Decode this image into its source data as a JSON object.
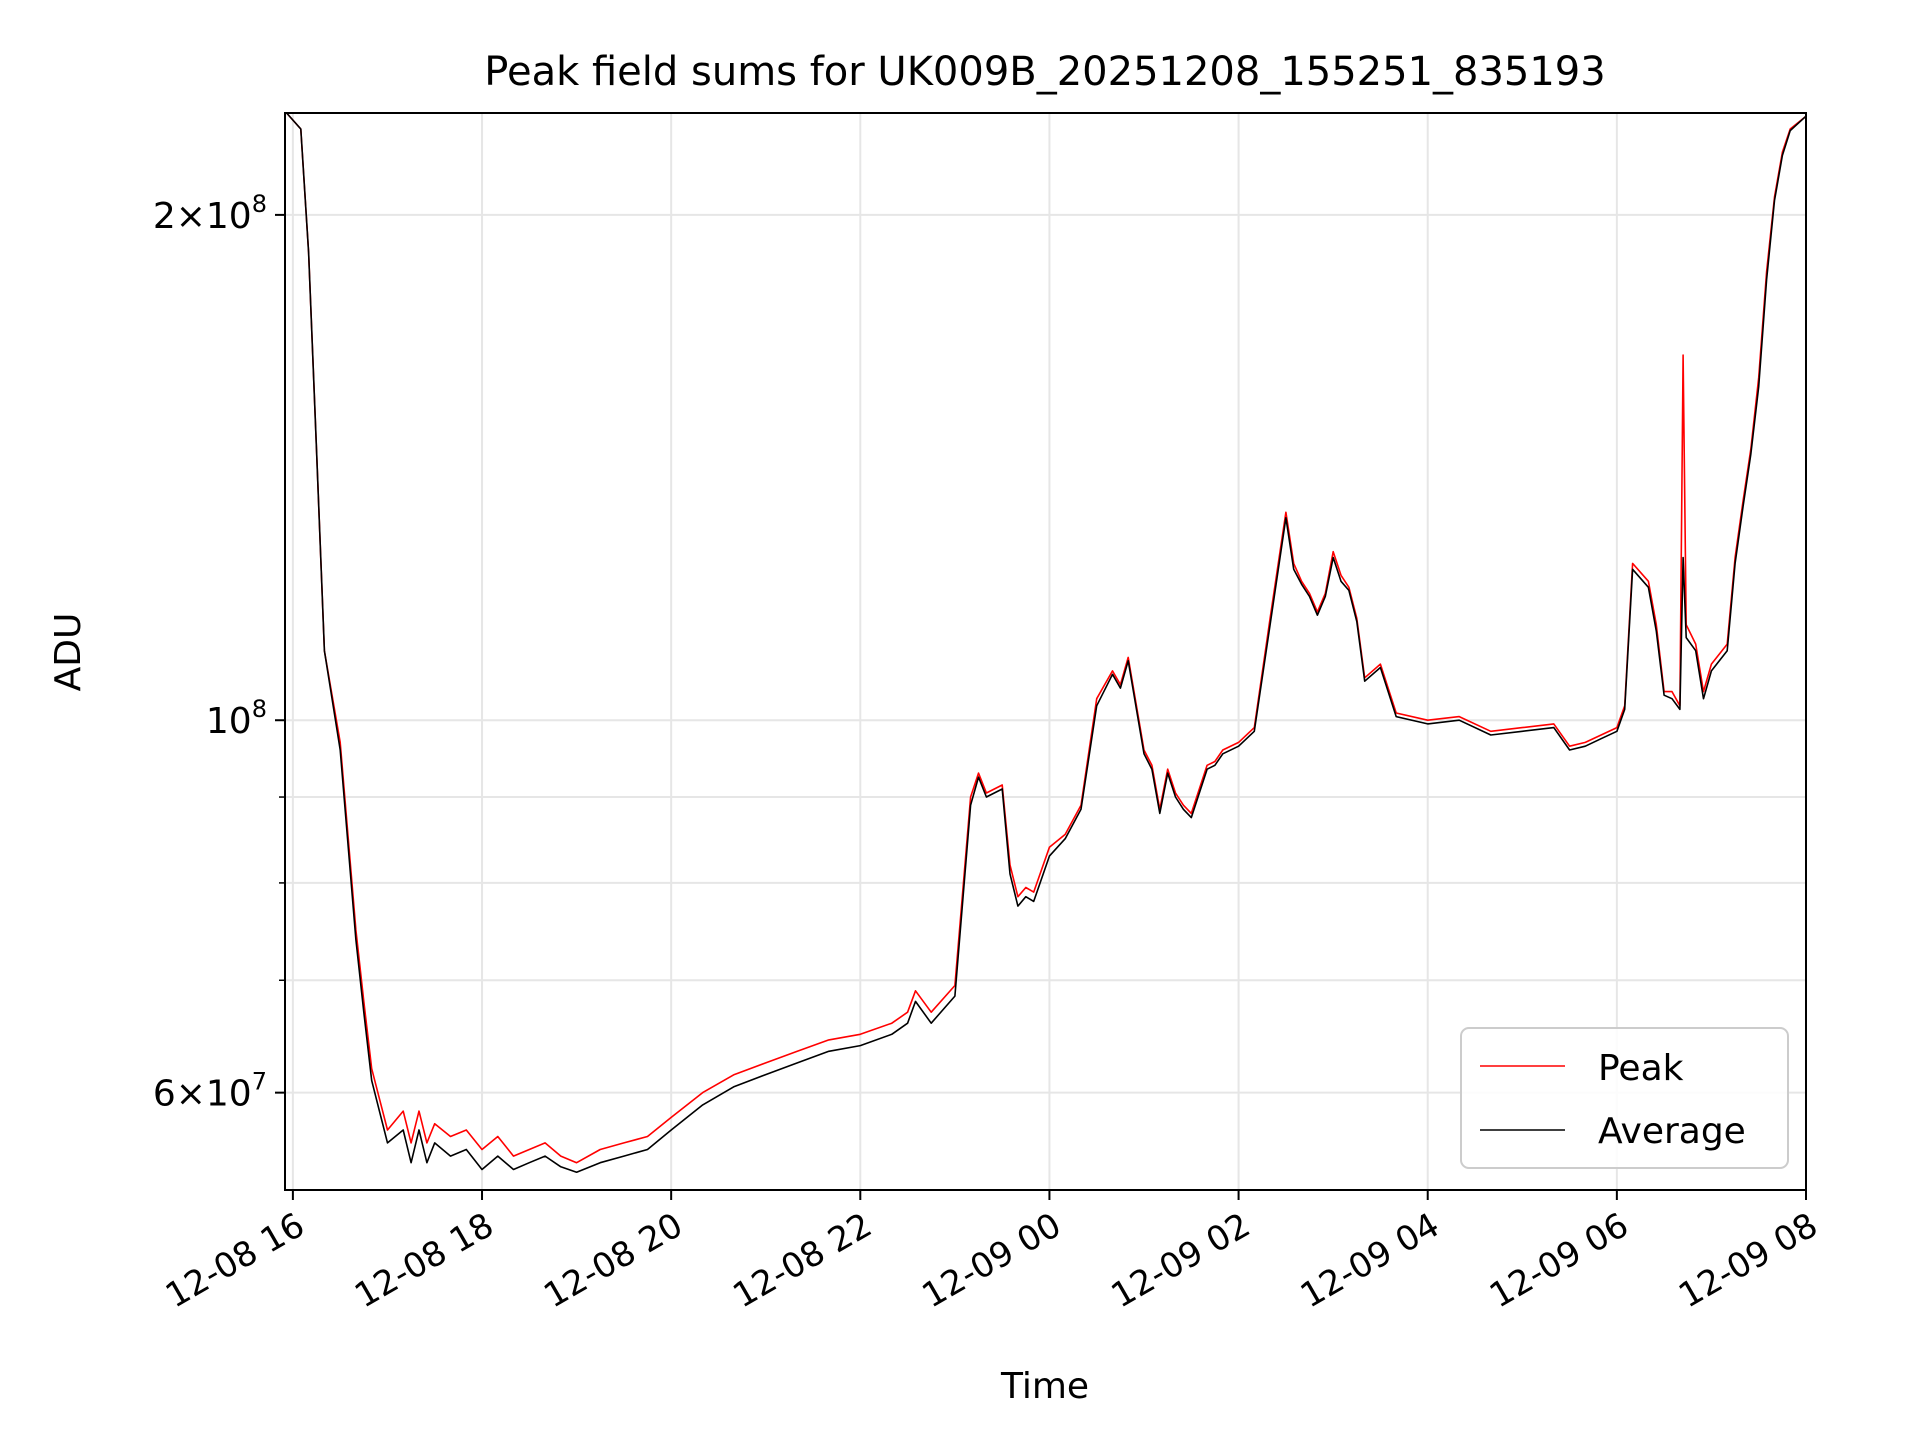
{
  "chart_data": {
    "type": "line",
    "title": "Peak field sums for UK009B_20251208_155251_835193",
    "xlabel": "Time",
    "ylabel": "ADU",
    "yscale": "log",
    "ylim": [
      52500000,
      230000000
    ],
    "xlim": [
      "2025-12-08 15:55",
      "2025-12-09 08:00"
    ],
    "grid": true,
    "legend_position": "lower-right",
    "x_ticks": [
      "2025-12-08 16:00",
      "2025-12-08 18:00",
      "2025-12-08 20:00",
      "2025-12-08 22:00",
      "2025-12-09 00:00",
      "2025-12-09 02:00",
      "2025-12-09 04:00",
      "2025-12-09 06:00",
      "2025-12-09 08:00"
    ],
    "x_tick_labels": [
      "12-08 16",
      "12-08 18",
      "12-08 20",
      "12-08 22",
      "12-09 00",
      "12-09 02",
      "12-09 04",
      "12-09 06",
      "12-09 08"
    ],
    "y_major_ticks": [
      {
        "value": 60000000,
        "mantissa": "6",
        "exponent": "7"
      },
      {
        "value": 100000000,
        "mantissa": "",
        "exponent": "8"
      },
      {
        "value": 200000000,
        "mantissa": "2",
        "exponent": "8"
      }
    ],
    "y_minor_ticks": [
      70000000,
      80000000,
      90000000
    ],
    "series": [
      {
        "name": "Peak",
        "color": "#ff0000",
        "x": [
          "2025-12-08 15:56",
          "2025-12-08 16:05",
          "2025-12-08 16:10",
          "2025-12-08 16:15",
          "2025-12-08 16:20",
          "2025-12-08 16:30",
          "2025-12-08 16:40",
          "2025-12-08 16:45",
          "2025-12-08 16:50",
          "2025-12-08 17:00",
          "2025-12-08 17:10",
          "2025-12-08 17:15",
          "2025-12-08 17:20",
          "2025-12-08 17:25",
          "2025-12-08 17:30",
          "2025-12-08 17:40",
          "2025-12-08 17:50",
          "2025-12-08 18:00",
          "2025-12-08 18:10",
          "2025-12-08 18:20",
          "2025-12-08 18:30",
          "2025-12-08 18:40",
          "2025-12-08 18:50",
          "2025-12-08 19:00",
          "2025-12-08 19:15",
          "2025-12-08 19:30",
          "2025-12-08 19:45",
          "2025-12-08 20:00",
          "2025-12-08 20:20",
          "2025-12-08 20:40",
          "2025-12-08 21:00",
          "2025-12-08 21:20",
          "2025-12-08 21:40",
          "2025-12-08 22:00",
          "2025-12-08 22:20",
          "2025-12-08 22:30",
          "2025-12-08 22:35",
          "2025-12-08 22:45",
          "2025-12-08 23:00",
          "2025-12-08 23:10",
          "2025-12-08 23:15",
          "2025-12-08 23:20",
          "2025-12-08 23:30",
          "2025-12-08 23:35",
          "2025-12-08 23:40",
          "2025-12-08 23:45",
          "2025-12-08 23:50",
          "2025-12-09 00:00",
          "2025-12-09 00:10",
          "2025-12-09 00:20",
          "2025-12-09 00:30",
          "2025-12-09 00:40",
          "2025-12-09 00:45",
          "2025-12-09 00:50",
          "2025-12-09 01:00",
          "2025-12-09 01:05",
          "2025-12-09 01:10",
          "2025-12-09 01:15",
          "2025-12-09 01:20",
          "2025-12-09 01:25",
          "2025-12-09 01:30",
          "2025-12-09 01:40",
          "2025-12-09 01:45",
          "2025-12-09 01:50",
          "2025-12-09 02:00",
          "2025-12-09 02:10",
          "2025-12-09 02:20",
          "2025-12-09 02:30",
          "2025-12-09 02:35",
          "2025-12-09 02:40",
          "2025-12-09 02:45",
          "2025-12-09 02:50",
          "2025-12-09 02:55",
          "2025-12-09 03:00",
          "2025-12-09 03:05",
          "2025-12-09 03:10",
          "2025-12-09 03:15",
          "2025-12-09 03:20",
          "2025-12-09 03:30",
          "2025-12-09 03:40",
          "2025-12-09 04:00",
          "2025-12-09 04:20",
          "2025-12-09 04:40",
          "2025-12-09 05:00",
          "2025-12-09 05:20",
          "2025-12-09 05:30",
          "2025-12-09 05:40",
          "2025-12-09 05:50",
          "2025-12-09 06:00",
          "2025-12-09 06:05",
          "2025-12-09 06:10",
          "2025-12-09 06:20",
          "2025-12-09 06:25",
          "2025-12-09 06:30",
          "2025-12-09 06:35",
          "2025-12-09 06:40",
          "2025-12-09 06:42",
          "2025-12-09 06:44",
          "2025-12-09 06:50",
          "2025-12-09 06:55",
          "2025-12-09 07:00",
          "2025-12-09 07:10",
          "2025-12-09 07:15",
          "2025-12-09 07:20",
          "2025-12-09 07:25",
          "2025-12-09 07:30",
          "2025-12-09 07:35",
          "2025-12-09 07:40",
          "2025-12-09 07:45",
          "2025-12-09 07:50",
          "2025-12-09 08:00"
        ],
        "y": [
          230000000,
          225000000,
          190000000,
          145000000,
          110000000,
          97000000,
          75000000,
          68000000,
          62000000,
          57000000,
          58500000,
          56000000,
          58500000,
          56000000,
          57500000,
          56500000,
          57000000,
          55500000,
          56500000,
          55000000,
          55500000,
          56000000,
          55000000,
          54500000,
          55500000,
          56000000,
          56500000,
          58000000,
          60000000,
          61500000,
          62500000,
          63500000,
          64500000,
          65000000,
          66000000,
          67000000,
          69000000,
          67000000,
          69500000,
          90000000,
          93000000,
          90500000,
          91500000,
          82000000,
          78500000,
          79500000,
          79000000,
          84000000,
          85500000,
          89000000,
          103000000,
          107000000,
          105000000,
          109000000,
          96000000,
          94000000,
          88500000,
          93500000,
          90500000,
          89000000,
          88000000,
          94000000,
          94500000,
          96000000,
          97000000,
          99000000,
          115000000,
          133000000,
          124000000,
          121000000,
          119000000,
          116000000,
          119000000,
          126000000,
          122000000,
          120000000,
          115000000,
          106000000,
          108000000,
          101000000,
          100000000,
          100500000,
          98500000,
          99000000,
          99500000,
          96500000,
          97000000,
          98000000,
          99000000,
          102000000,
          124000000,
          121000000,
          114000000,
          104000000,
          104000000,
          102000000,
          165000000,
          114000000,
          111000000,
          104000000,
          108000000,
          111000000,
          125000000,
          135000000,
          145000000,
          160000000,
          185000000,
          205000000,
          218000000,
          225000000,
          229000000
        ]
      },
      {
        "name": "Average",
        "color": "#000000",
        "x": [
          "2025-12-08 15:56",
          "2025-12-08 16:05",
          "2025-12-08 16:10",
          "2025-12-08 16:15",
          "2025-12-08 16:20",
          "2025-12-08 16:30",
          "2025-12-08 16:40",
          "2025-12-08 16:45",
          "2025-12-08 16:50",
          "2025-12-08 17:00",
          "2025-12-08 17:10",
          "2025-12-08 17:15",
          "2025-12-08 17:20",
          "2025-12-08 17:25",
          "2025-12-08 17:30",
          "2025-12-08 17:40",
          "2025-12-08 17:50",
          "2025-12-08 18:00",
          "2025-12-08 18:10",
          "2025-12-08 18:20",
          "2025-12-08 18:30",
          "2025-12-08 18:40",
          "2025-12-08 18:50",
          "2025-12-08 19:00",
          "2025-12-08 19:15",
          "2025-12-08 19:30",
          "2025-12-08 19:45",
          "2025-12-08 20:00",
          "2025-12-08 20:20",
          "2025-12-08 20:40",
          "2025-12-08 21:00",
          "2025-12-08 21:20",
          "2025-12-08 21:40",
          "2025-12-08 22:00",
          "2025-12-08 22:20",
          "2025-12-08 22:30",
          "2025-12-08 22:35",
          "2025-12-08 22:45",
          "2025-12-08 23:00",
          "2025-12-08 23:10",
          "2025-12-08 23:15",
          "2025-12-08 23:20",
          "2025-12-08 23:30",
          "2025-12-08 23:35",
          "2025-12-08 23:40",
          "2025-12-08 23:45",
          "2025-12-08 23:50",
          "2025-12-09 00:00",
          "2025-12-09 00:10",
          "2025-12-09 00:20",
          "2025-12-09 00:30",
          "2025-12-09 00:40",
          "2025-12-09 00:45",
          "2025-12-09 00:50",
          "2025-12-09 01:00",
          "2025-12-09 01:05",
          "2025-12-09 01:10",
          "2025-12-09 01:15",
          "2025-12-09 01:20",
          "2025-12-09 01:25",
          "2025-12-09 01:30",
          "2025-12-09 01:40",
          "2025-12-09 01:45",
          "2025-12-09 01:50",
          "2025-12-09 02:00",
          "2025-12-09 02:10",
          "2025-12-09 02:20",
          "2025-12-09 02:30",
          "2025-12-09 02:35",
          "2025-12-09 02:40",
          "2025-12-09 02:45",
          "2025-12-09 02:50",
          "2025-12-09 02:55",
          "2025-12-09 03:00",
          "2025-12-09 03:05",
          "2025-12-09 03:10",
          "2025-12-09 03:15",
          "2025-12-09 03:20",
          "2025-12-09 03:30",
          "2025-12-09 03:40",
          "2025-12-09 04:00",
          "2025-12-09 04:20",
          "2025-12-09 04:40",
          "2025-12-09 05:00",
          "2025-12-09 05:20",
          "2025-12-09 05:30",
          "2025-12-09 05:40",
          "2025-12-09 05:50",
          "2025-12-09 06:00",
          "2025-12-09 06:05",
          "2025-12-09 06:10",
          "2025-12-09 06:20",
          "2025-12-09 06:25",
          "2025-12-09 06:30",
          "2025-12-09 06:35",
          "2025-12-09 06:40",
          "2025-12-09 06:42",
          "2025-12-09 06:44",
          "2025-12-09 06:50",
          "2025-12-09 06:55",
          "2025-12-09 07:00",
          "2025-12-09 07:10",
          "2025-12-09 07:15",
          "2025-12-09 07:20",
          "2025-12-09 07:25",
          "2025-12-09 07:30",
          "2025-12-09 07:35",
          "2025-12-09 07:40",
          "2025-12-09 07:45",
          "2025-12-09 07:50",
          "2025-12-09 08:00"
        ],
        "y": [
          230000000,
          225000000,
          190000000,
          145000000,
          110000000,
          96000000,
          74000000,
          67000000,
          61000000,
          56000000,
          57000000,
          54500000,
          57000000,
          54500000,
          56000000,
          55000000,
          55500000,
          54000000,
          55000000,
          54000000,
          54500000,
          55000000,
          54200000,
          53800000,
          54500000,
          55000000,
          55500000,
          57000000,
          59000000,
          60500000,
          61500000,
          62500000,
          63500000,
          64000000,
          65000000,
          66000000,
          68000000,
          66000000,
          68500000,
          89000000,
          92500000,
          90000000,
          91000000,
          81000000,
          77500000,
          78500000,
          78000000,
          83000000,
          85000000,
          88500000,
          102000000,
          106500000,
          104500000,
          108500000,
          95500000,
          93500000,
          88000000,
          93000000,
          90000000,
          88500000,
          87500000,
          93500000,
          94000000,
          95500000,
          96500000,
          98500000,
          114000000,
          132000000,
          123000000,
          120500000,
          118500000,
          115500000,
          118500000,
          125000000,
          121000000,
          119500000,
          114500000,
          105500000,
          107500000,
          100500000,
          99500000,
          100000000,
          98000000,
          98500000,
          99000000,
          96000000,
          96500000,
          97500000,
          98500000,
          101500000,
          123000000,
          120000000,
          113000000,
          103500000,
          103000000,
          101500000,
          125000000,
          112000000,
          110000000,
          103000000,
          107000000,
          110000000,
          124000000,
          134000000,
          144000000,
          158000000,
          183000000,
          204000000,
          217000000,
          224500000,
          229000000
        ]
      }
    ]
  }
}
